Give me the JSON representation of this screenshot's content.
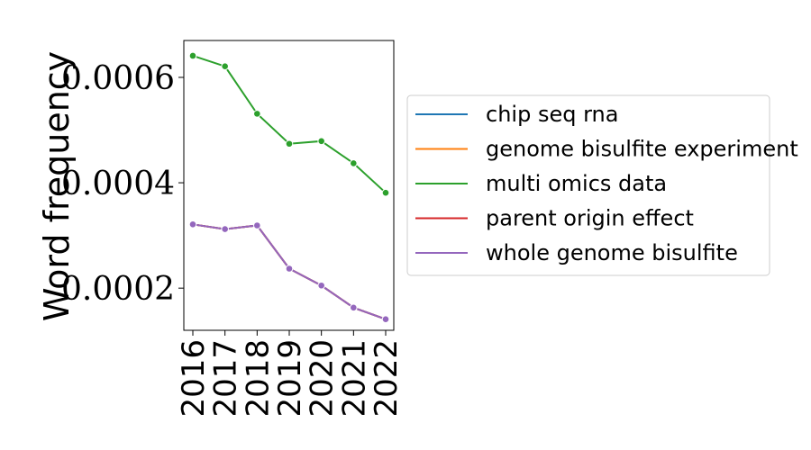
{
  "chart_data": {
    "type": "line",
    "x": [
      "2016",
      "2017",
      "2018",
      "2019",
      "2020",
      "2021",
      "2022"
    ],
    "ylabel": "Word frequency",
    "ylim": [
      0.00012,
      0.00067
    ],
    "yticks": [
      {
        "value": 0.0002,
        "label": "0.0002"
      },
      {
        "value": 0.0004,
        "label": "0.0004"
      },
      {
        "value": 0.0006,
        "label": "0.0006"
      }
    ],
    "grid": false,
    "legend_position": "right",
    "series": [
      {
        "name": "chip seq rna",
        "color": "#1f77b4",
        "values": [
          0.000321,
          0.000312,
          0.000319,
          0.000237,
          0.000205,
          0.000163,
          0.000141
        ]
      },
      {
        "name": "genome bisulfite experiment",
        "color": "#ff7f0e",
        "values": [
          0.000321,
          0.000312,
          0.000319,
          0.000237,
          0.000205,
          0.000163,
          0.000141
        ]
      },
      {
        "name": "multi omics data",
        "color": "#2ca02c",
        "values": [
          0.000641,
          0.000621,
          0.000531,
          0.000474,
          0.000479,
          0.000437,
          0.000381
        ]
      },
      {
        "name": "parent origin effect",
        "color": "#d62728",
        "values": [
          0.000321,
          0.000312,
          0.000319,
          0.000237,
          0.000205,
          0.000163,
          0.000141
        ]
      },
      {
        "name": "whole genome bisulfite",
        "color": "#9467bd",
        "values": [
          0.000321,
          0.000312,
          0.000319,
          0.000237,
          0.000205,
          0.000163,
          0.000141
        ]
      }
    ]
  }
}
